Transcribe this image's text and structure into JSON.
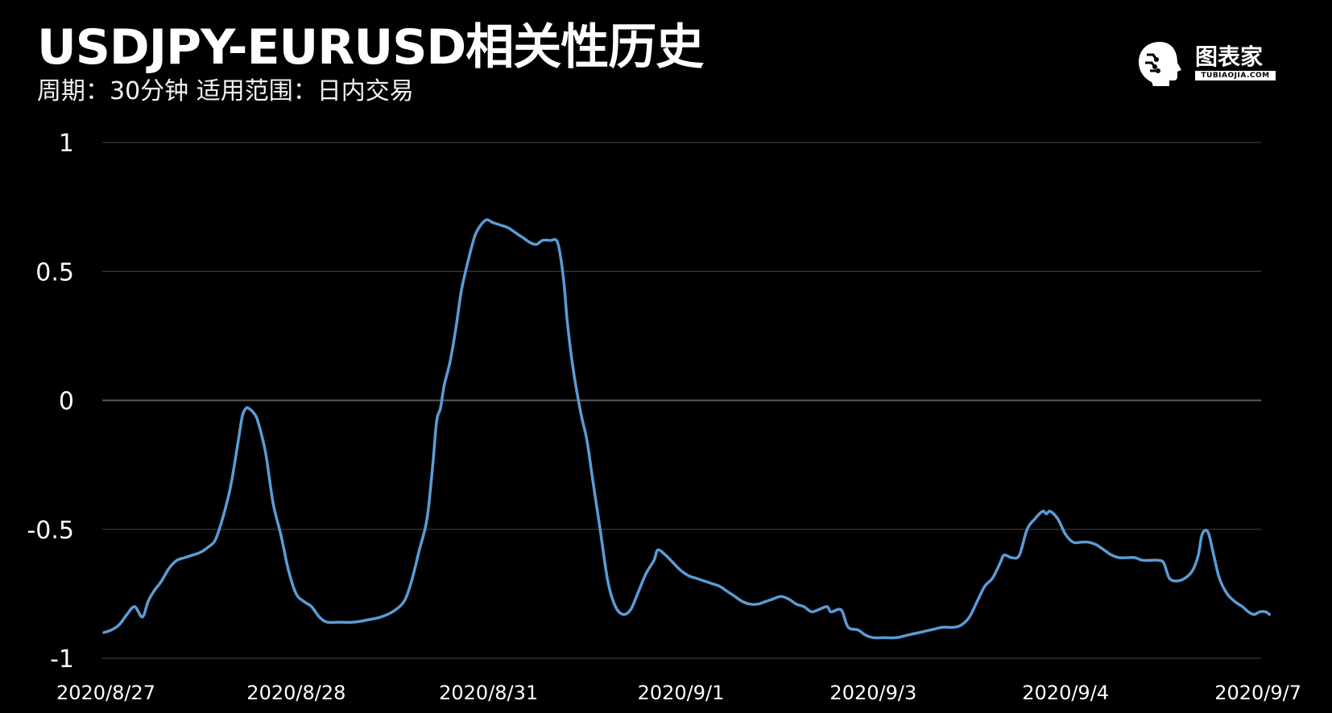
{
  "header": {
    "title": "USDJPY-EURUSD相关性历史",
    "subtitle": "周期：30分钟  适用范围：日内交易"
  },
  "logo": {
    "icon": "brain-head-icon",
    "text": "图表家",
    "subtext": "TUBIAOJIA.COM"
  },
  "colors": {
    "background": "#000000",
    "line": "#5b9bd5",
    "grid": "#3a3a3a",
    "zero_line": "#5a5a5a",
    "text": "#ffffff"
  },
  "chart_data": {
    "type": "line",
    "title": "USDJPY-EURUSD相关性历史",
    "subtitle": "周期：30分钟  适用范围：日内交易",
    "xlabel": "",
    "ylabel": "",
    "ylim": [
      -1,
      1
    ],
    "yticks": [
      {
        "value": 1,
        "label": "1"
      },
      {
        "value": 0.5,
        "label": "0.5"
      },
      {
        "value": 0,
        "label": "0"
      },
      {
        "value": -0.5,
        "label": "-0.5"
      },
      {
        "value": -1,
        "label": "-1"
      }
    ],
    "xticks": [
      {
        "pos": 0.0,
        "label": "2020/8/27"
      },
      {
        "pos": 1.0,
        "label": "2020/8/28"
      },
      {
        "pos": 2.0,
        "label": "2020/8/31"
      },
      {
        "pos": 3.0,
        "label": "2020/9/1"
      },
      {
        "pos": 4.0,
        "label": "2020/9/3"
      },
      {
        "pos": 5.0,
        "label": "2020/9/4"
      },
      {
        "pos": 6.0,
        "label": "2020/9/7"
      }
    ],
    "grid": true,
    "legend": "none",
    "series": [
      {
        "color": "#5b9bd5",
        "points": [
          [
            0.0,
            -0.9
          ],
          [
            0.04,
            -0.89
          ],
          [
            0.08,
            -0.87
          ],
          [
            0.12,
            -0.83
          ],
          [
            0.16,
            -0.8
          ],
          [
            0.2,
            -0.84
          ],
          [
            0.23,
            -0.78
          ],
          [
            0.26,
            -0.74
          ],
          [
            0.3,
            -0.7
          ],
          [
            0.34,
            -0.65
          ],
          [
            0.38,
            -0.62
          ],
          [
            0.42,
            -0.61
          ],
          [
            0.46,
            -0.6
          ],
          [
            0.5,
            -0.59
          ],
          [
            0.54,
            -0.57
          ],
          [
            0.58,
            -0.54
          ],
          [
            0.62,
            -0.45
          ],
          [
            0.66,
            -0.33
          ],
          [
            0.7,
            -0.15
          ],
          [
            0.72,
            -0.06
          ],
          [
            0.74,
            -0.03
          ],
          [
            0.76,
            -0.035
          ],
          [
            0.78,
            -0.05
          ],
          [
            0.8,
            -0.08
          ],
          [
            0.84,
            -0.2
          ],
          [
            0.88,
            -0.4
          ],
          [
            0.92,
            -0.52
          ],
          [
            0.96,
            -0.66
          ],
          [
            1.0,
            -0.75
          ],
          [
            1.04,
            -0.78
          ],
          [
            1.08,
            -0.8
          ],
          [
            1.12,
            -0.84
          ],
          [
            1.16,
            -0.86
          ],
          [
            1.22,
            -0.86
          ],
          [
            1.3,
            -0.86
          ],
          [
            1.38,
            -0.85
          ],
          [
            1.44,
            -0.84
          ],
          [
            1.5,
            -0.82
          ],
          [
            1.56,
            -0.78
          ],
          [
            1.6,
            -0.7
          ],
          [
            1.64,
            -0.58
          ],
          [
            1.68,
            -0.46
          ],
          [
            1.71,
            -0.25
          ],
          [
            1.73,
            -0.08
          ],
          [
            1.75,
            -0.03
          ],
          [
            1.77,
            0.06
          ],
          [
            1.8,
            0.15
          ],
          [
            1.83,
            0.28
          ],
          [
            1.86,
            0.43
          ],
          [
            1.9,
            0.56
          ],
          [
            1.93,
            0.64
          ],
          [
            1.96,
            0.68
          ],
          [
            1.99,
            0.7
          ],
          [
            2.02,
            0.69
          ],
          [
            2.06,
            0.68
          ],
          [
            2.1,
            0.67
          ],
          [
            2.14,
            0.65
          ],
          [
            2.18,
            0.63
          ],
          [
            2.22,
            0.61
          ],
          [
            2.25,
            0.605
          ],
          [
            2.28,
            0.62
          ],
          [
            2.32,
            0.62
          ],
          [
            2.36,
            0.61
          ],
          [
            2.39,
            0.47
          ],
          [
            2.41,
            0.3
          ],
          [
            2.44,
            0.12
          ],
          [
            2.48,
            -0.05
          ],
          [
            2.51,
            -0.15
          ],
          [
            2.54,
            -0.3
          ],
          [
            2.58,
            -0.5
          ],
          [
            2.62,
            -0.7
          ],
          [
            2.66,
            -0.8
          ],
          [
            2.7,
            -0.83
          ],
          [
            2.74,
            -0.81
          ],
          [
            2.78,
            -0.74
          ],
          [
            2.82,
            -0.67
          ],
          [
            2.86,
            -0.62
          ],
          [
            2.88,
            -0.58
          ],
          [
            2.92,
            -0.6
          ],
          [
            2.96,
            -0.63
          ],
          [
            3.0,
            -0.66
          ],
          [
            3.04,
            -0.68
          ],
          [
            3.08,
            -0.69
          ],
          [
            3.12,
            -0.7
          ],
          [
            3.16,
            -0.71
          ],
          [
            3.2,
            -0.72
          ],
          [
            3.24,
            -0.74
          ],
          [
            3.28,
            -0.76
          ],
          [
            3.32,
            -0.78
          ],
          [
            3.36,
            -0.79
          ],
          [
            3.4,
            -0.79
          ],
          [
            3.44,
            -0.78
          ],
          [
            3.48,
            -0.77
          ],
          [
            3.52,
            -0.76
          ],
          [
            3.56,
            -0.77
          ],
          [
            3.6,
            -0.79
          ],
          [
            3.64,
            -0.8
          ],
          [
            3.68,
            -0.82
          ],
          [
            3.72,
            -0.81
          ],
          [
            3.76,
            -0.8
          ],
          [
            3.78,
            -0.82
          ],
          [
            3.82,
            -0.81
          ],
          [
            3.84,
            -0.82
          ],
          [
            3.87,
            -0.88
          ],
          [
            3.92,
            -0.89
          ],
          [
            3.96,
            -0.91
          ],
          [
            4.0,
            -0.92
          ],
          [
            4.06,
            -0.92
          ],
          [
            4.12,
            -0.92
          ],
          [
            4.18,
            -0.91
          ],
          [
            4.24,
            -0.9
          ],
          [
            4.3,
            -0.89
          ],
          [
            4.36,
            -0.88
          ],
          [
            4.42,
            -0.88
          ],
          [
            4.46,
            -0.87
          ],
          [
            4.5,
            -0.84
          ],
          [
            4.54,
            -0.78
          ],
          [
            4.58,
            -0.72
          ],
          [
            4.62,
            -0.69
          ],
          [
            4.66,
            -0.63
          ],
          [
            4.68,
            -0.6
          ],
          [
            4.72,
            -0.61
          ],
          [
            4.76,
            -0.6
          ],
          [
            4.8,
            -0.5
          ],
          [
            4.84,
            -0.46
          ],
          [
            4.88,
            -0.43
          ],
          [
            4.9,
            -0.44
          ],
          [
            4.92,
            -0.43
          ],
          [
            4.96,
            -0.46
          ],
          [
            5.0,
            -0.52
          ],
          [
            5.04,
            -0.55
          ],
          [
            5.08,
            -0.55
          ],
          [
            5.12,
            -0.55
          ],
          [
            5.16,
            -0.56
          ],
          [
            5.2,
            -0.58
          ],
          [
            5.24,
            -0.6
          ],
          [
            5.28,
            -0.61
          ],
          [
            5.32,
            -0.61
          ],
          [
            5.36,
            -0.61
          ],
          [
            5.4,
            -0.62
          ],
          [
            5.44,
            -0.62
          ],
          [
            5.48,
            -0.62
          ],
          [
            5.51,
            -0.63
          ],
          [
            5.54,
            -0.69
          ],
          [
            5.58,
            -0.7
          ],
          [
            5.62,
            -0.69
          ],
          [
            5.66,
            -0.66
          ],
          [
            5.69,
            -0.6
          ],
          [
            5.71,
            -0.52
          ],
          [
            5.74,
            -0.51
          ],
          [
            5.77,
            -0.6
          ],
          [
            5.8,
            -0.69
          ],
          [
            5.84,
            -0.75
          ],
          [
            5.88,
            -0.78
          ],
          [
            5.92,
            -0.8
          ],
          [
            5.95,
            -0.82
          ],
          [
            5.98,
            -0.83
          ],
          [
            6.01,
            -0.82
          ],
          [
            6.04,
            -0.82
          ],
          [
            6.06,
            -0.83
          ]
        ]
      }
    ]
  }
}
